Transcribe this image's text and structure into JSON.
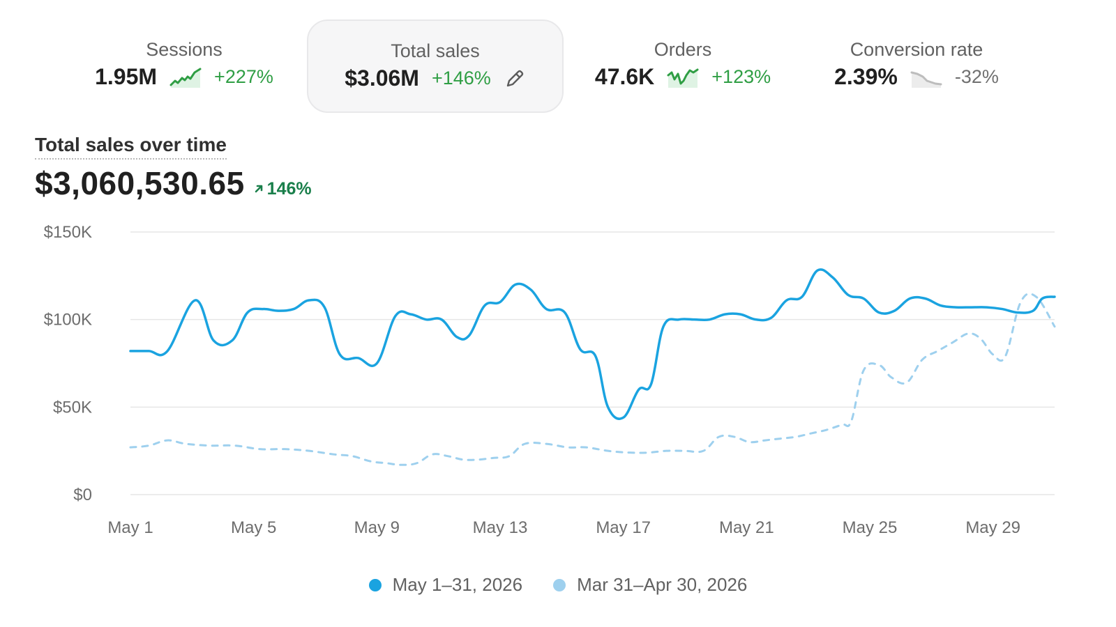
{
  "metrics": [
    {
      "label": "Sessions",
      "value": "1.95M",
      "change": "+227%",
      "trend": "up",
      "sparkline_icon": "trend-up-sparkline-icon"
    },
    {
      "label": "Total sales",
      "value": "$3.06M",
      "change": "+146%",
      "trend": "up",
      "active": true,
      "edit_icon": "pencil-icon"
    },
    {
      "label": "Orders",
      "value": "47.6K",
      "change": "+123%",
      "trend": "up",
      "sparkline_icon": "trend-up-sparkline-icon"
    },
    {
      "label": "Conversion rate",
      "value": "2.39%",
      "change": "-32%",
      "trend": "down",
      "sparkline_icon": "trend-down-sparkline-icon"
    }
  ],
  "chart_header": {
    "title": "Total sales over time",
    "total": "$3,060,530.65",
    "change": "146%",
    "change_icon": "arrow-up-right-icon"
  },
  "colors": {
    "primary_series": "#1aa3e0",
    "comparison_series": "#9ed0ee",
    "positive": "#2f9e44",
    "neutral_negative": "#707070"
  },
  "chart_data": {
    "type": "line",
    "ylim": [
      0,
      150000
    ],
    "y_ticks": [
      0,
      50000,
      100000,
      150000
    ],
    "y_tick_labels": [
      "$0",
      "$50K",
      "$100K",
      "$150K"
    ],
    "x_tick_labels": [
      "May 1",
      "May 5",
      "May 9",
      "May 13",
      "May 17",
      "May 21",
      "May 25",
      "May 29"
    ],
    "x_tick_days": [
      1,
      5,
      9,
      13,
      17,
      21,
      25,
      29
    ],
    "x_range": [
      1,
      31
    ],
    "grid": true,
    "legend_position": "bottom",
    "series": [
      {
        "name": "May 1–31, 2026",
        "style": "solid",
        "days": [
          1,
          1.6,
          2.2,
          3.1,
          3.7,
          4.3,
          4.8,
          5.3,
          5.8,
          6.3,
          6.8,
          7.3,
          7.8,
          8.4,
          9,
          9.6,
          10.1,
          10.6,
          11.1,
          11.6,
          12,
          12.5,
          13,
          13.5,
          14,
          14.5,
          15.1,
          15.6,
          16.1,
          16.5,
          17,
          17.5,
          17.9,
          18.3,
          18.8,
          19.3,
          19.8,
          20.3,
          20.8,
          21.3,
          21.8,
          22.3,
          22.8,
          23.3,
          23.8,
          24.3,
          24.8,
          25.3,
          25.8,
          26.3,
          26.8,
          27.3,
          27.8,
          28.3,
          28.8,
          29.3,
          29.8,
          30.3,
          30.6,
          31
        ],
        "values": [
          82000,
          82000,
          82000,
          111000,
          88000,
          88000,
          104000,
          106000,
          105000,
          106000,
          111000,
          107000,
          80000,
          78000,
          75000,
          102000,
          103000,
          100000,
          100000,
          90000,
          91000,
          108000,
          110000,
          120000,
          117000,
          106000,
          104000,
          83000,
          79000,
          50000,
          44000,
          60000,
          63000,
          96000,
          100000,
          100000,
          100000,
          103000,
          103000,
          100000,
          101000,
          111000,
          113000,
          128000,
          124000,
          114000,
          112000,
          104000,
          105000,
          112000,
          112000,
          108000,
          107000,
          107000,
          107000,
          106000,
          104000,
          105000,
          112000,
          113000
        ]
      },
      {
        "name": "Mar 31–Apr 30, 2026",
        "style": "dashed",
        "days": [
          1,
          1.6,
          2.2,
          2.8,
          3.6,
          4.4,
          5.2,
          6,
          6.8,
          7.6,
          8.2,
          8.8,
          9.3,
          9.8,
          10.3,
          10.8,
          11.3,
          11.8,
          12.3,
          12.8,
          13.3,
          13.8,
          14.5,
          15.2,
          15.8,
          16.5,
          17.2,
          17.8,
          18.4,
          19,
          19.6,
          20.1,
          20.6,
          21.1,
          21.6,
          22.1,
          22.6,
          23.1,
          23.6,
          24.1,
          24.4,
          24.8,
          25.3,
          25.7,
          26.2,
          26.7,
          27.2,
          27.7,
          28.2,
          28.6,
          29,
          29.4,
          29.9,
          30.4,
          31
        ],
        "values": [
          27000,
          28000,
          31000,
          29000,
          28000,
          28000,
          26000,
          26000,
          25000,
          23000,
          22000,
          19000,
          18000,
          17000,
          18000,
          23000,
          22000,
          20000,
          20000,
          21000,
          22000,
          29000,
          29000,
          27000,
          27000,
          25000,
          24000,
          24000,
          25000,
          25000,
          25000,
          33000,
          33000,
          30000,
          31000,
          32000,
          33000,
          35000,
          37000,
          40000,
          42000,
          71000,
          74000,
          67000,
          64000,
          77000,
          82000,
          87000,
          92000,
          89000,
          80000,
          79000,
          110000,
          113000,
          96000
        ]
      }
    ]
  }
}
